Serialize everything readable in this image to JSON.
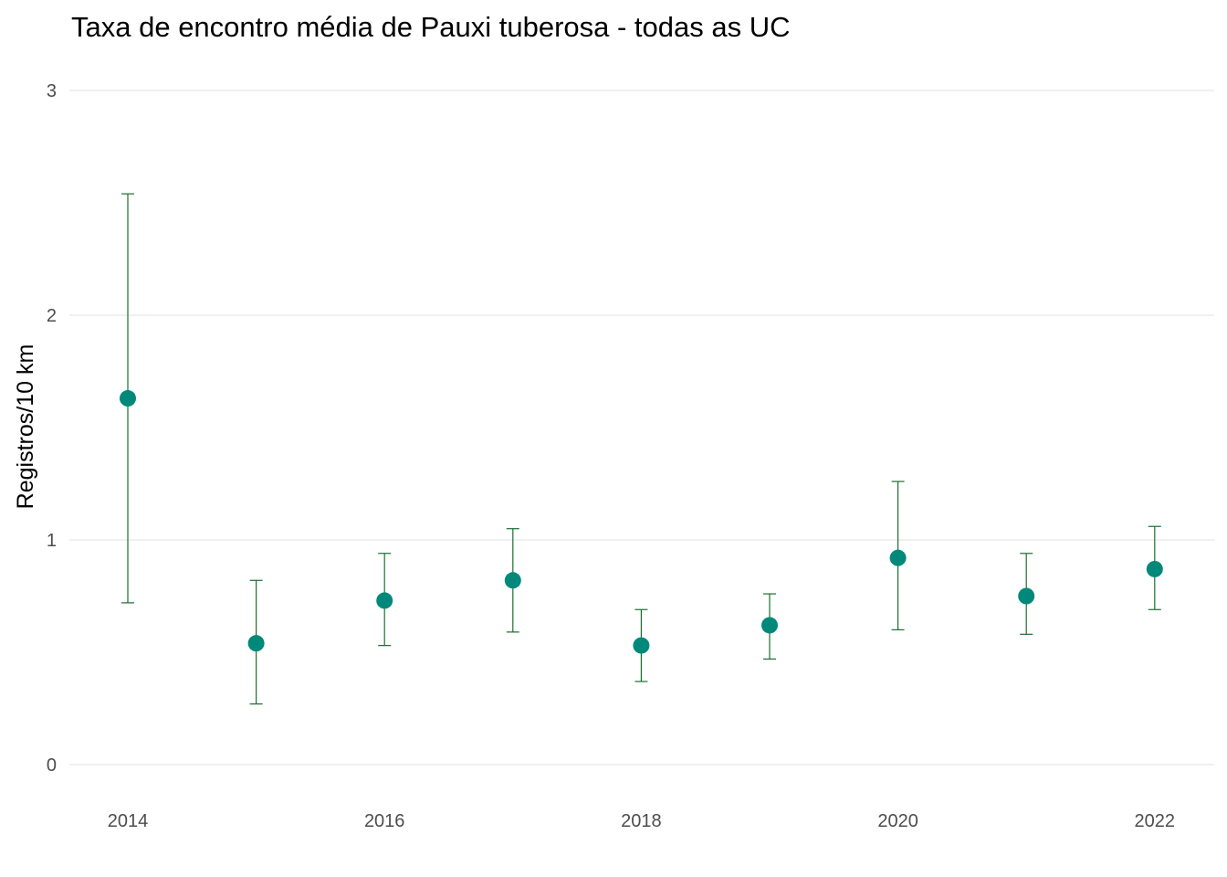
{
  "chart_data": {
    "type": "scatter",
    "title": "Taxa de encontro média de Pauxi tuberosa - todas as UC",
    "xlabel": "",
    "ylabel": "Registros/10 km",
    "xlim": [
      2013.93,
      2022.4
    ],
    "ylim": [
      0,
      3
    ],
    "x_ticks": [
      2014,
      2016,
      2018,
      2020,
      2022
    ],
    "y_ticks": [
      0,
      1,
      2,
      3
    ],
    "grid": "horizontal major",
    "legend": "none",
    "point_color": "#00897b",
    "errorbar_color": "#1b6e2f",
    "points": [
      {
        "x": 2014,
        "y": 1.63,
        "ymin": 0.72,
        "ymax": 2.54
      },
      {
        "x": 2015,
        "y": 0.54,
        "ymin": 0.27,
        "ymax": 0.82
      },
      {
        "x": 2016,
        "y": 0.73,
        "ymin": 0.53,
        "ymax": 0.94
      },
      {
        "x": 2017,
        "y": 0.82,
        "ymin": 0.59,
        "ymax": 1.05
      },
      {
        "x": 2018,
        "y": 0.53,
        "ymin": 0.37,
        "ymax": 0.69
      },
      {
        "x": 2019,
        "y": 0.62,
        "ymin": 0.47,
        "ymax": 0.76
      },
      {
        "x": 2020,
        "y": 0.92,
        "ymin": 0.6,
        "ymax": 1.26
      },
      {
        "x": 2021,
        "y": 0.75,
        "ymin": 0.58,
        "ymax": 0.94
      },
      {
        "x": 2022,
        "y": 0.87,
        "ymin": 0.69,
        "ymax": 1.06
      }
    ]
  }
}
